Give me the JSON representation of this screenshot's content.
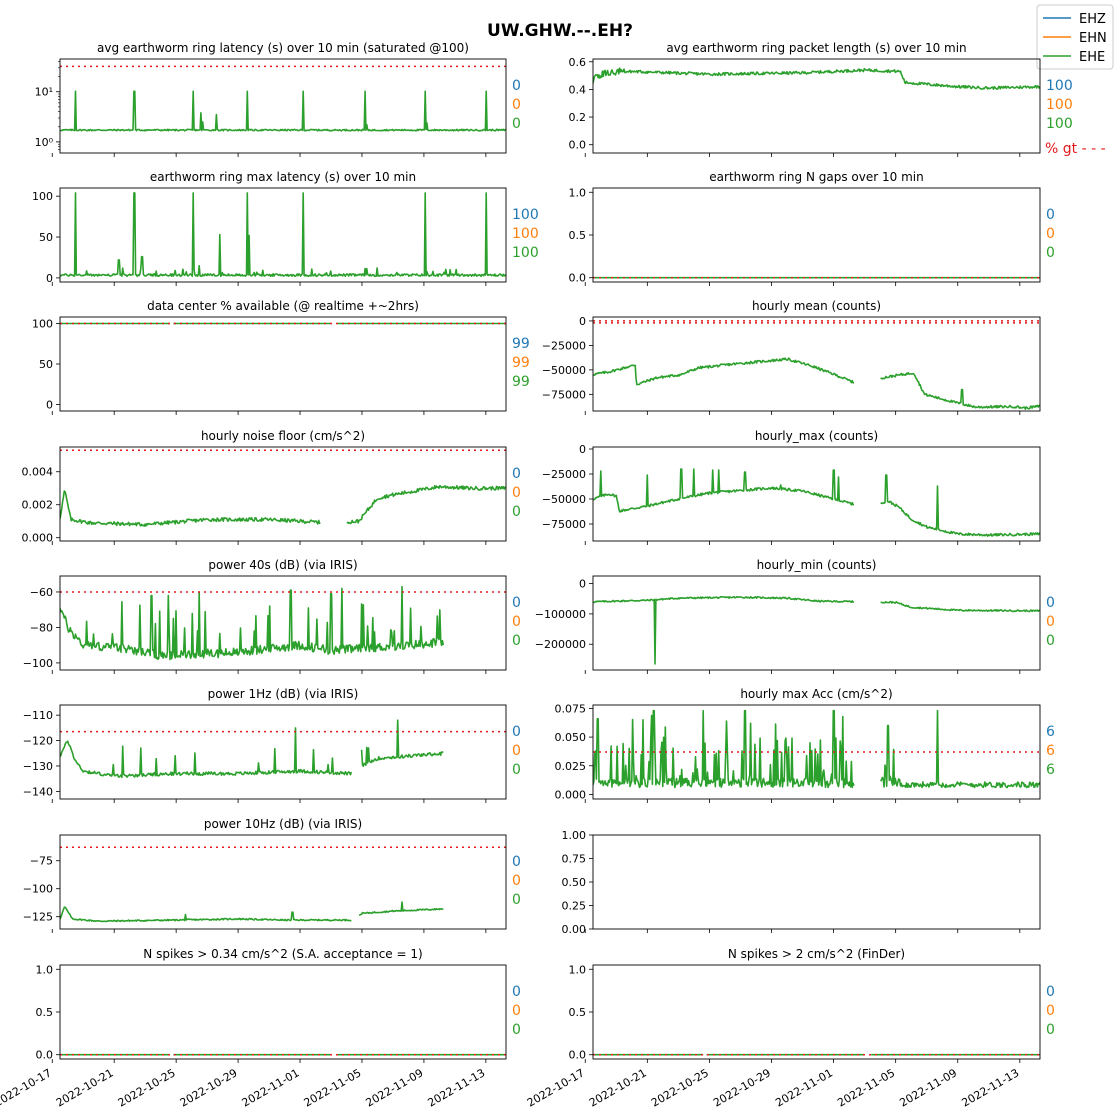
{
  "figure": {
    "title": "UW.GHW.--.EH?",
    "legend": {
      "position": "top-right",
      "items": [
        {
          "label": "EHZ",
          "color": "#1f77b4"
        },
        {
          "label": "EHN",
          "color": "#ff7f0e"
        },
        {
          "label": "EHE",
          "color": "#2ca02c"
        }
      ]
    },
    "xticks": [
      "2022-10-17",
      "2022-10-21",
      "2022-10-25",
      "2022-10-29",
      "2022-11-01",
      "2022-11-05",
      "2022-11-09",
      "2022-11-13"
    ],
    "threshold_note": "% gt - - -",
    "threshold_color": "#e41a1c"
  },
  "chart_data": [
    {
      "type": "line",
      "title": "avg earthworm ring latency (s)   over 10 min (saturated @100)",
      "yscale": "log",
      "ylim": [
        0.6,
        45
      ],
      "yticks": [
        {
          "v": 1,
          "label": "10⁰"
        },
        {
          "v": 10,
          "label": "10¹"
        }
      ],
      "threshold": 32,
      "percent_gt": [
        "0",
        "0",
        "0"
      ],
      "shape": "latency",
      "base": 1.75,
      "spike": 10,
      "gap": null
    },
    {
      "type": "line",
      "title": "avg earthworm ring packet length (s)   over 10 min",
      "ylim": [
        -0.06,
        0.62
      ],
      "yticks": [
        {
          "v": 0,
          "label": "0.0"
        },
        {
          "v": 0.2,
          "label": "0.2"
        },
        {
          "v": 0.4,
          "label": "0.4"
        },
        {
          "v": 0.6,
          "label": "0.6"
        }
      ],
      "threshold": null,
      "percent_gt": [
        "100",
        "100",
        "100"
      ],
      "shape": "packet",
      "gap": null
    },
    {
      "type": "line",
      "title": "earthworm ring max latency (s)   over 10 min",
      "ylim": [
        -5,
        110
      ],
      "yticks": [
        {
          "v": 0,
          "label": "0"
        },
        {
          "v": 50,
          "label": "50"
        },
        {
          "v": 100,
          "label": "100"
        }
      ],
      "threshold": null,
      "percent_gt": [
        "100",
        "100",
        "100"
      ],
      "shape": "maxlat",
      "gap": null
    },
    {
      "type": "line",
      "title": "earthworm ring N gaps   over 10 min",
      "ylim": [
        -0.05,
        1.05
      ],
      "yticks": [
        {
          "v": 0,
          "label": "0.0"
        },
        {
          "v": 0.5,
          "label": "0.5"
        },
        {
          "v": 1,
          "label": "1.0"
        }
      ],
      "threshold": 0,
      "percent_gt": [
        "0",
        "0",
        "0"
      ],
      "shape": "zero",
      "gap": null
    },
    {
      "type": "line",
      "title": "data center % available (@ realtime +~2hrs)",
      "ylim": [
        -8,
        108
      ],
      "yticks": [
        {
          "v": 0,
          "label": "0"
        },
        {
          "v": 50,
          "label": "50"
        },
        {
          "v": 100,
          "label": "100"
        }
      ],
      "threshold": 100,
      "percent_gt": [
        "99",
        "99",
        "99"
      ],
      "shape": "avail",
      "gap": [
        23.5,
        24.0
      ]
    },
    {
      "type": "line",
      "title": "hourly mean (counts)",
      "ylim": [
        -92000,
        4000
      ],
      "yticks": [
        {
          "v": 0,
          "label": "0"
        },
        {
          "v": -25000,
          "label": "−25000"
        },
        {
          "v": -50000,
          "label": "−50000"
        },
        {
          "v": -75000,
          "label": "−75000"
        }
      ],
      "threshold": [
        0,
        -2000
      ],
      "percent_gt": null,
      "shape": "mean",
      "gap": [
        22.6,
        24.8
      ]
    },
    {
      "type": "line",
      "title": "hourly noise floor (cm/s^2)",
      "ylim": [
        -0.0002,
        0.0055
      ],
      "yticks": [
        {
          "v": 0,
          "label": "0.000"
        },
        {
          "v": 0.002,
          "label": "0.002"
        },
        {
          "v": 0.004,
          "label": "0.004"
        }
      ],
      "threshold": 0.0053,
      "percent_gt": [
        "0",
        "0",
        "0"
      ],
      "shape": "noise",
      "gap": [
        22.6,
        24.8
      ]
    },
    {
      "type": "line",
      "title": "hourly_max (counts)",
      "ylim": [
        -92000,
        2000
      ],
      "yticks": [
        {
          "v": 0,
          "label": "0"
        },
        {
          "v": -25000,
          "label": "−25000"
        },
        {
          "v": -50000,
          "label": "−50000"
        },
        {
          "v": -75000,
          "label": "−75000"
        }
      ],
      "threshold": null,
      "percent_gt": null,
      "shape": "hmax",
      "gap": [
        22.6,
        24.8
      ]
    },
    {
      "type": "line",
      "title": "power 40s (dB) (via IRIS)",
      "ylim": [
        -104,
        -51
      ],
      "yticks": [
        {
          "v": -60,
          "label": "−60"
        },
        {
          "v": -80,
          "label": "−80"
        },
        {
          "v": -100,
          "label": "−100"
        }
      ],
      "threshold": -60,
      "percent_gt": [
        "0",
        "0",
        "0"
      ],
      "shape": "p40",
      "gap": null
    },
    {
      "type": "line",
      "title": "hourly_min (counts)",
      "ylim": [
        -285000,
        25000
      ],
      "yticks": [
        {
          "v": 0,
          "label": "0"
        },
        {
          "v": -100000,
          "label": "−100000"
        },
        {
          "v": -200000,
          "label": "−200000"
        }
      ],
      "threshold": null,
      "percent_gt": [
        "0",
        "0",
        "0"
      ],
      "shape": "hmin",
      "gap": [
        22.6,
        24.8
      ]
    },
    {
      "type": "line",
      "title": "power 1Hz (dB) (via IRIS)",
      "ylim": [
        -143,
        -106
      ],
      "yticks": [
        {
          "v": -110,
          "label": "−110"
        },
        {
          "v": -120,
          "label": "−120"
        },
        {
          "v": -130,
          "label": "−130"
        },
        {
          "v": -140,
          "label": "−140"
        }
      ],
      "threshold": -116.5,
      "percent_gt": [
        "0",
        "0",
        "0"
      ],
      "shape": "p1",
      "gap": null
    },
    {
      "type": "line",
      "title": "hourly max Acc (cm/s^2)",
      "ylim": [
        -0.004,
        0.078
      ],
      "yticks": [
        {
          "v": 0,
          "label": "0.000"
        },
        {
          "v": 0.025,
          "label": "0.025"
        },
        {
          "v": 0.05,
          "label": "0.050"
        },
        {
          "v": 0.075,
          "label": "0.075"
        }
      ],
      "threshold": 0.037,
      "percent_gt": [
        "6",
        "6",
        "6"
      ],
      "shape": "acc",
      "gap": [
        22.6,
        24.8
      ]
    },
    {
      "type": "line",
      "title": "power 10Hz (dB) (via IRIS)",
      "ylim": [
        -136,
        -52
      ],
      "yticks": [
        {
          "v": -75,
          "label": "−75"
        },
        {
          "v": -100,
          "label": "−100"
        },
        {
          "v": -125,
          "label": "−125"
        }
      ],
      "threshold": -63,
      "percent_gt": [
        "0",
        "0",
        "0"
      ],
      "shape": "p10",
      "gap": null
    },
    {
      "type": "line",
      "title": "",
      "ylim": [
        0,
        1
      ],
      "yticks": [
        {
          "v": 0,
          "label": "0.00"
        },
        {
          "v": 0.25,
          "label": "0.25"
        },
        {
          "v": 0.5,
          "label": "0.50"
        },
        {
          "v": 0.75,
          "label": "0.75"
        },
        {
          "v": 1,
          "label": "1.00"
        }
      ],
      "threshold": null,
      "percent_gt": null,
      "shape": "empty",
      "gap": null
    },
    {
      "type": "line",
      "title": "N spikes > 0.34 cm/s^2 (S.A. acceptance = 1)",
      "ylim": [
        -0.05,
        1.05
      ],
      "yticks": [
        {
          "v": 0,
          "label": "0.0"
        },
        {
          "v": 0.5,
          "label": "0.5"
        },
        {
          "v": 1,
          "label": "1.0"
        }
      ],
      "threshold": 0,
      "percent_gt": [
        "0",
        "0",
        "0"
      ],
      "shape": "zero",
      "gap": [
        23.5,
        24.0
      ]
    },
    {
      "type": "line",
      "title": "N spikes > 2 cm/s^2 (FinDer)",
      "ylim": [
        -0.05,
        1.05
      ],
      "yticks": [
        {
          "v": 0,
          "label": "0.0"
        },
        {
          "v": 0.5,
          "label": "0.5"
        },
        {
          "v": 1,
          "label": "1.0"
        }
      ],
      "threshold": 0,
      "percent_gt": [
        "0",
        "0",
        "0"
      ],
      "shape": "zero",
      "gap": [
        23.5,
        24.0
      ]
    }
  ]
}
